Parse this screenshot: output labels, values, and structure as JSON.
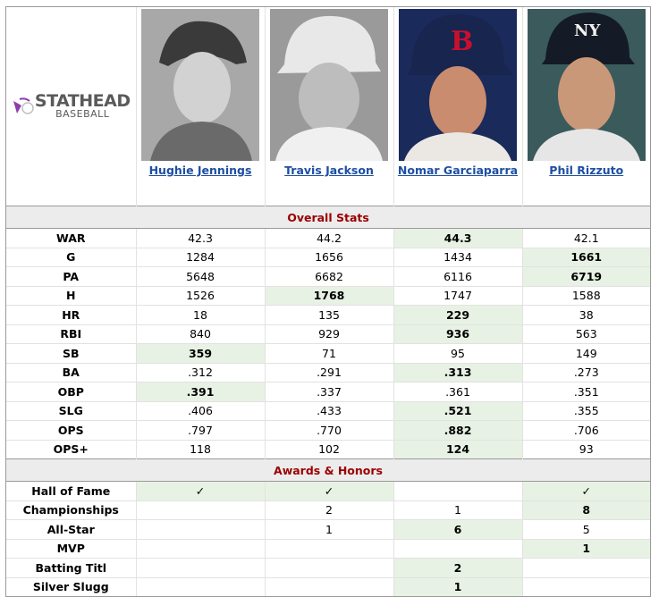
{
  "brand": {
    "name": "STATHEAD",
    "sub": "BASEBALL"
  },
  "players": [
    {
      "name": "Hughie Jennings"
    },
    {
      "name": "Travis Jackson"
    },
    {
      "name": "Nomar Garciaparra"
    },
    {
      "name": "Phil Rizzuto"
    }
  ],
  "sections": {
    "overall": "Overall Stats",
    "awards": "Awards & Honors"
  },
  "overall_stats": [
    {
      "label": "WAR",
      "values": [
        "42.3",
        "44.2",
        "44.3",
        "42.1"
      ],
      "leader": 2
    },
    {
      "label": "G",
      "values": [
        "1284",
        "1656",
        "1434",
        "1661"
      ],
      "leader": 3
    },
    {
      "label": "PA",
      "values": [
        "5648",
        "6682",
        "6116",
        "6719"
      ],
      "leader": 3
    },
    {
      "label": "H",
      "values": [
        "1526",
        "1768",
        "1747",
        "1588"
      ],
      "leader": 1
    },
    {
      "label": "HR",
      "values": [
        "18",
        "135",
        "229",
        "38"
      ],
      "leader": 2
    },
    {
      "label": "RBI",
      "values": [
        "840",
        "929",
        "936",
        "563"
      ],
      "leader": 2
    },
    {
      "label": "SB",
      "values": [
        "359",
        "71",
        "95",
        "149"
      ],
      "leader": 0
    },
    {
      "label": "BA",
      "values": [
        ".312",
        ".291",
        ".313",
        ".273"
      ],
      "leader": 2
    },
    {
      "label": "OBP",
      "values": [
        ".391",
        ".337",
        ".361",
        ".351"
      ],
      "leader": 0
    },
    {
      "label": "SLG",
      "values": [
        ".406",
        ".433",
        ".521",
        ".355"
      ],
      "leader": 2
    },
    {
      "label": "OPS",
      "values": [
        ".797",
        ".770",
        ".882",
        ".706"
      ],
      "leader": 2
    },
    {
      "label": "OPS+",
      "values": [
        "118",
        "102",
        "124",
        "93"
      ],
      "leader": 2
    }
  ],
  "awards": [
    {
      "label": "Hall of Fame",
      "values": [
        "✓",
        "✓",
        "",
        "✓"
      ],
      "leaders": [
        0,
        1,
        3
      ]
    },
    {
      "label": "Championships",
      "values": [
        "",
        "2",
        "1",
        "8"
      ],
      "leaders": [
        3
      ]
    },
    {
      "label": "All-Star",
      "values": [
        "",
        "1",
        "6",
        "5"
      ],
      "leaders": [
        2
      ]
    },
    {
      "label": "MVP",
      "values": [
        "",
        "",
        "",
        "1"
      ],
      "leaders": [
        3
      ]
    },
    {
      "label": "Batting Titl",
      "values": [
        "",
        "",
        "2",
        ""
      ],
      "leaders": [
        2
      ]
    },
    {
      "label": "Silver Slugg",
      "values": [
        "",
        "",
        "1",
        ""
      ],
      "leaders": [
        2
      ]
    }
  ],
  "colors": {
    "highlight": "#e8f2e4",
    "section_text": "#9b0000",
    "link": "#1d4ea3",
    "logo_purple": "#8e3db0"
  }
}
